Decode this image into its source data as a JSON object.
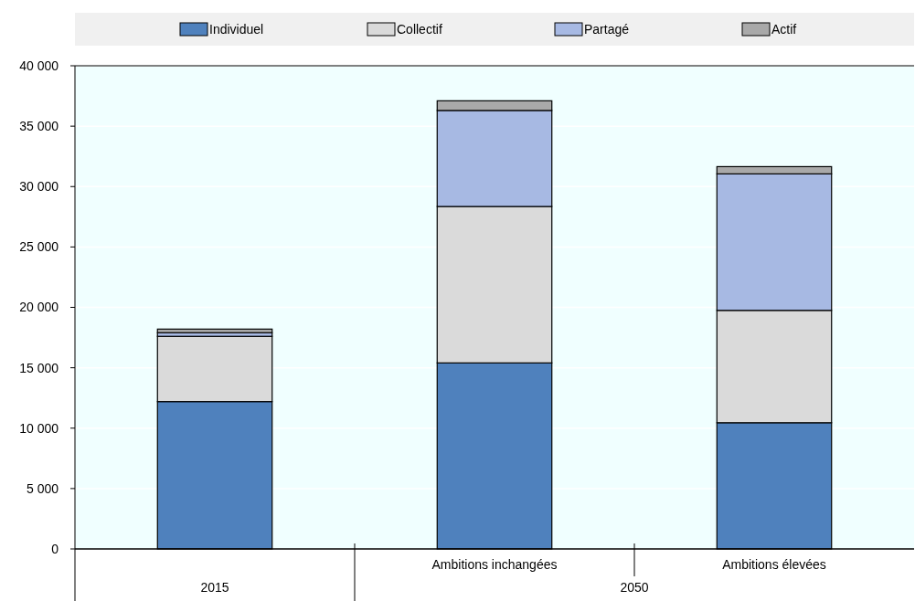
{
  "chart_data": {
    "type": "bar",
    "stacked": true,
    "categories": [
      "2015",
      "Ambitions inchangées",
      "Ambitions élevées"
    ],
    "series": [
      {
        "name": "Individuel",
        "color": "#4f81bd",
        "values": [
          12200,
          15400,
          10450
        ]
      },
      {
        "name": "Collectif",
        "color": "#dadada",
        "values": [
          5400,
          12950,
          9300
        ]
      },
      {
        "name": "Partagé",
        "color": "#a7b9e3",
        "values": [
          300,
          7950,
          11300
        ]
      },
      {
        "name": "Actif",
        "color": "#a9a9a9",
        "values": [
          300,
          800,
          600
        ]
      }
    ],
    "ylim": [
      0,
      40000
    ],
    "yticks": [
      {
        "value": 0,
        "label": "0"
      },
      {
        "value": 5000,
        "label": "5 000"
      },
      {
        "value": 10000,
        "label": "10 000"
      },
      {
        "value": 15000,
        "label": "15 000"
      },
      {
        "value": 20000,
        "label": "20 000"
      },
      {
        "value": 25000,
        "label": "25 000"
      },
      {
        "value": 30000,
        "label": "30 000"
      },
      {
        "value": 35000,
        "label": "35 000"
      },
      {
        "value": 40000,
        "label": "40 000"
      }
    ],
    "grid": "y",
    "legend": "top",
    "annotations": [
      "2050"
    ]
  }
}
